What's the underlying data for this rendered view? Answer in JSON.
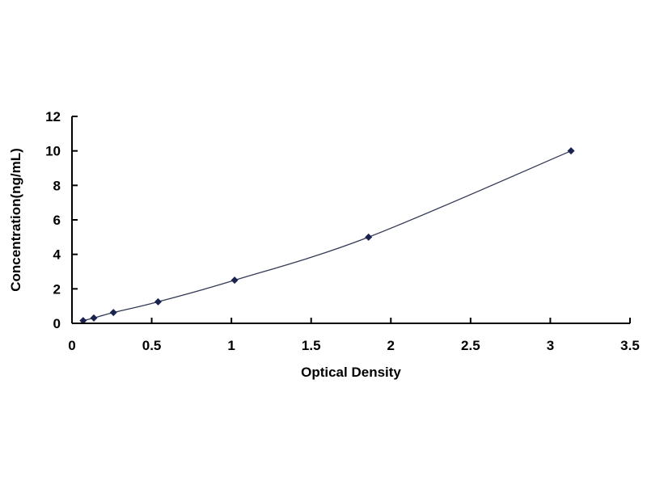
{
  "chart_data": {
    "type": "scatter",
    "title": "",
    "xlabel": "Optical Density",
    "ylabel": "Concentration(ng/mL)",
    "xlim": [
      0,
      3.5
    ],
    "ylim": [
      0,
      12
    ],
    "x_ticks": [
      "0",
      "0.5",
      "1",
      "1.5",
      "2",
      "2.5",
      "3",
      "3.5"
    ],
    "y_ticks": [
      "0",
      "2",
      "4",
      "6",
      "8",
      "10",
      "12"
    ],
    "grid": false,
    "legend": "none",
    "trendline": "smooth curve",
    "series": [
      {
        "x": [
          0.07,
          0.137,
          0.26,
          0.54,
          1.02,
          1.86,
          3.13
        ],
        "y": [
          0.156,
          0.312,
          0.625,
          1.25,
          2.5,
          5,
          10
        ],
        "marker": "diamond",
        "color": "#1a2350"
      }
    ]
  }
}
